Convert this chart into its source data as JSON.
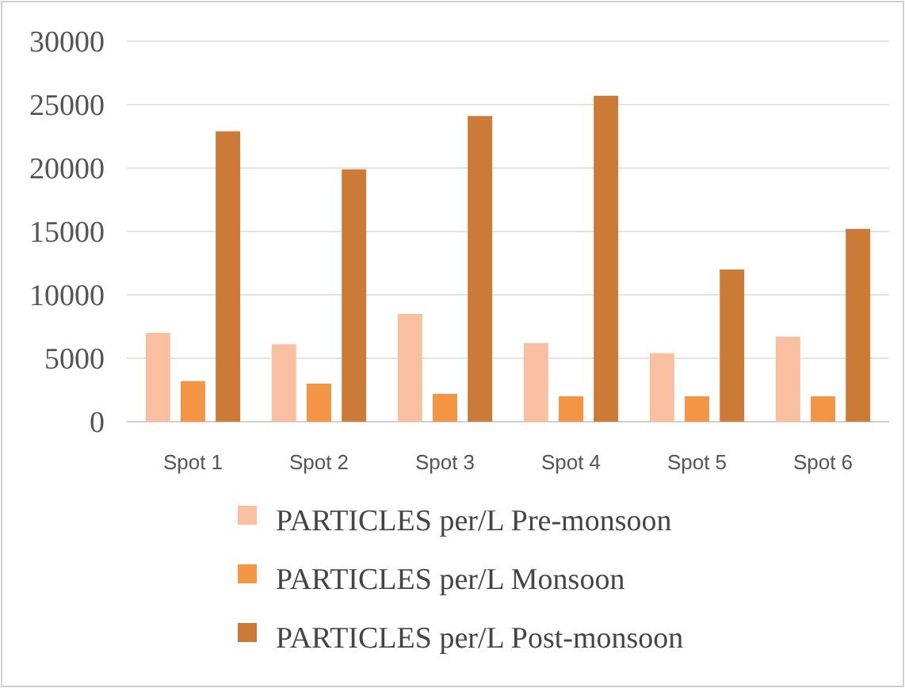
{
  "chart_data": {
    "type": "bar",
    "categories": [
      "Spot 1",
      "Spot 2",
      "Spot 3",
      "Spot 4",
      "Spot 5",
      "Spot 6"
    ],
    "series": [
      {
        "name": "PARTICLES per/L Pre-monsoon",
        "color": "#f8c0a0",
        "values": [
          7000,
          6100,
          8500,
          6200,
          5400,
          6700
        ]
      },
      {
        "name": "PARTICLES per/L Monsoon",
        "color": "#f39544",
        "values": [
          3200,
          3000,
          2200,
          2000,
          2000,
          2000
        ]
      },
      {
        "name": "PARTICLES per/L Post-monsoon",
        "color": "#cc7a38",
        "values": [
          22900,
          19900,
          24100,
          25700,
          12000,
          15200
        ]
      }
    ],
    "ylim": [
      0,
      30000
    ],
    "yticks": [
      0,
      5000,
      10000,
      15000,
      20000,
      25000,
      30000
    ],
    "grid": "y",
    "legend": "bottom"
  }
}
